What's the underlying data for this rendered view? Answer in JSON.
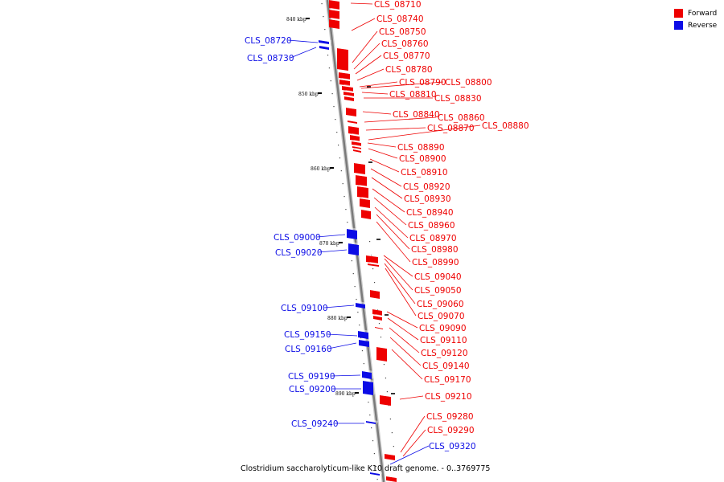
{
  "colors": {
    "forward": "#ee0000",
    "reverse": "#0c0ce6",
    "axis": "#7a7a7a"
  },
  "legend": [
    {
      "label": "Forward",
      "color": "#ee0000"
    },
    {
      "label": "Reverse",
      "color": "#0c0ce6"
    }
  ],
  "caption": "Clostridium saccharolyticum-like K10 draft genome. - 0..3769775",
  "ticks": [
    "840 kbp",
    "850 kbp",
    "860 kbp",
    "870 kbp",
    "880 kbp",
    "890 kbp"
  ],
  "genes": {
    "forward": [
      "CLS_08710",
      "CLS_08740",
      "CLS_08750",
      "CLS_08760",
      "CLS_08770",
      "CLS_08780",
      "CLS_08790",
      "CLS_08800",
      "CLS_08810",
      "CLS_08830",
      "CLS_08840",
      "CLS_08860",
      "CLS_08870",
      "CLS_08880",
      "CLS_08890",
      "CLS_08900",
      "CLS_08910",
      "CLS_08920",
      "CLS_08930",
      "CLS_08940",
      "CLS_08960",
      "CLS_08970",
      "CLS_08980",
      "CLS_08990",
      "CLS_09040",
      "CLS_09050",
      "CLS_09060",
      "CLS_09070",
      "CLS_09090",
      "CLS_09110",
      "CLS_09120",
      "CLS_09140",
      "CLS_09170",
      "CLS_09210",
      "CLS_09280",
      "CLS_09290"
    ],
    "reverse": [
      "CLS_08720",
      "CLS_08730",
      "CLS_09000",
      "CLS_09020",
      "CLS_09100",
      "CLS_09150",
      "CLS_09160",
      "CLS_09190",
      "CLS_09200",
      "CLS_09240",
      "CLS_09320"
    ]
  }
}
